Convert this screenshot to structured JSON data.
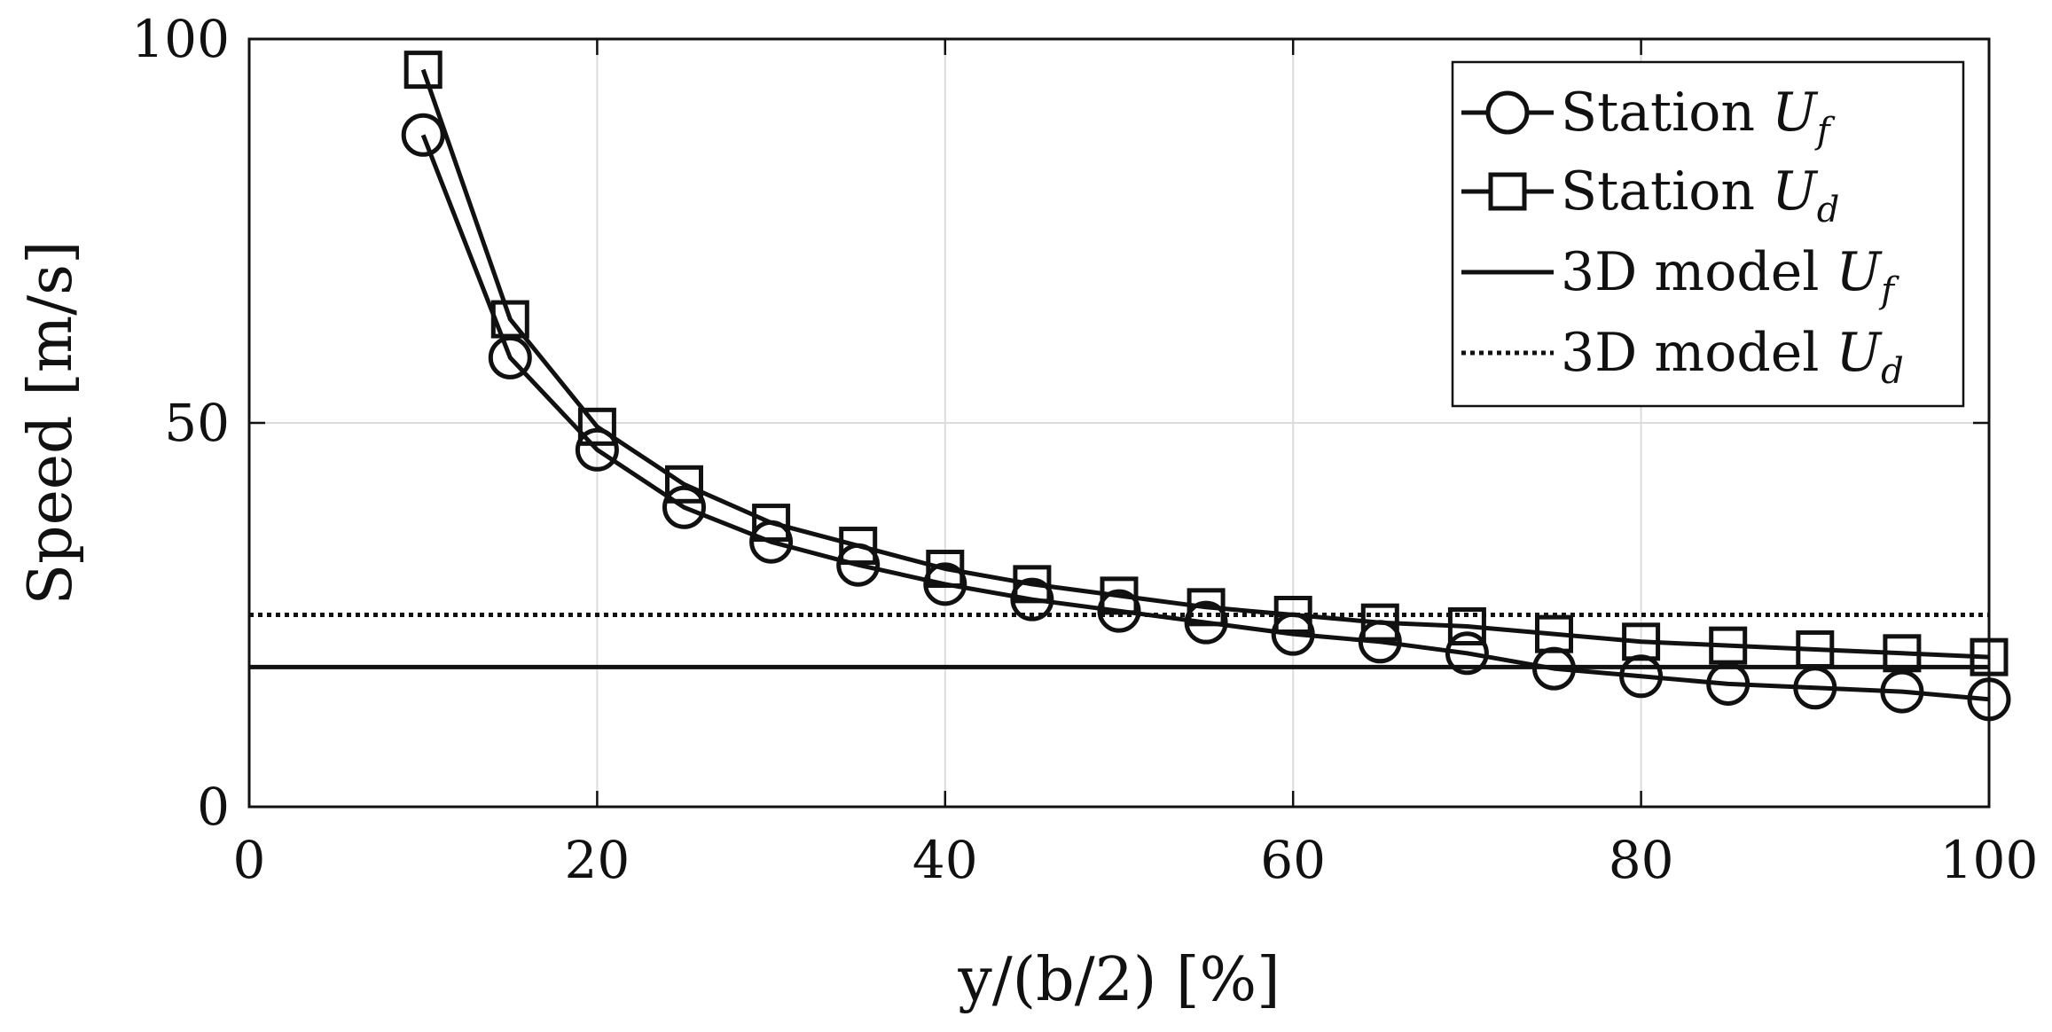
{
  "chart_data": {
    "type": "line",
    "title": "",
    "xlabel": "y/(b/2) [%]",
    "ylabel": "Speed [m/s]",
    "xlim": [
      0,
      100
    ],
    "ylim": [
      0,
      100
    ],
    "xticks": [
      0,
      20,
      40,
      60,
      80,
      100
    ],
    "yticks": [
      0,
      50,
      100
    ],
    "grid": true,
    "legend_position": "top-right",
    "x": [
      10,
      15,
      20,
      25,
      30,
      35,
      40,
      45,
      50,
      55,
      60,
      65,
      70,
      75,
      80,
      85,
      90,
      95,
      100
    ],
    "series": [
      {
        "name": "Station U_f",
        "label_text": "Station ",
        "label_symbol": "U",
        "label_sub": "f",
        "marker": "circle",
        "line": "solid",
        "values": [
          87.5,
          58.5,
          46.5,
          39.0,
          34.5,
          31.5,
          29.0,
          27.0,
          25.5,
          24.0,
          22.5,
          21.5,
          20.0,
          18.0,
          17.0,
          16.0,
          15.5,
          15.0,
          14.0
        ]
      },
      {
        "name": "Station U_d",
        "label_text": "Station ",
        "label_symbol": "U",
        "label_sub": "d",
        "marker": "square",
        "line": "solid",
        "values": [
          96.0,
          63.5,
          49.5,
          42.0,
          37.0,
          34.0,
          31.0,
          29.0,
          27.5,
          26.0,
          25.0,
          24.0,
          23.5,
          22.5,
          21.5,
          21.0,
          20.5,
          20.0,
          19.5
        ]
      },
      {
        "name": "3D model U_f",
        "label_text": "3D model ",
        "label_symbol": "U",
        "label_sub": "f",
        "marker": "none",
        "line": "solid",
        "constant": 18.2
      },
      {
        "name": "3D model U_d",
        "label_text": "3D model ",
        "label_symbol": "U",
        "label_sub": "d",
        "marker": "none",
        "line": "dotted",
        "constant": 25.0
      }
    ]
  }
}
